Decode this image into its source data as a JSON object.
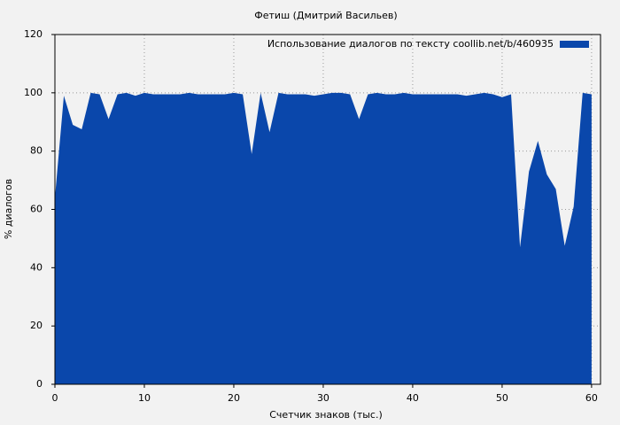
{
  "chart_data": {
    "type": "area",
    "title": "Фетиш (Дмитрий Васильев)",
    "x_label": "Счетчик знаков (тыс.)",
    "y_label": "% диалогов",
    "x": [
      0,
      1,
      2,
      3,
      4,
      5,
      6,
      7,
      8,
      9,
      10,
      11,
      12,
      13,
      14,
      15,
      16,
      17,
      18,
      19,
      20,
      21,
      22,
      23,
      24,
      25,
      26,
      27,
      28,
      29,
      30,
      31,
      32,
      33,
      34,
      35,
      36,
      37,
      38,
      39,
      40,
      41,
      42,
      43,
      44,
      45,
      46,
      47,
      48,
      49,
      50,
      51,
      52,
      53,
      54,
      55,
      56,
      57,
      58,
      59,
      60
    ],
    "series": [
      {
        "name": "Использование диалогов по тексту  coollib.net/b/460935",
        "color": "#0a47ab",
        "values": [
          64,
          99,
          89,
          87.5,
          100,
          99.5,
          91,
          99.5,
          100,
          99,
          100,
          99.5,
          99.5,
          99.5,
          99.5,
          100,
          99.5,
          99.5,
          99.5,
          99.5,
          100,
          99.5,
          79,
          100,
          86.5,
          100,
          99.5,
          99.5,
          99.5,
          99,
          99.5,
          100,
          100,
          99.5,
          91,
          99.5,
          100,
          99.5,
          99.5,
          100,
          99.5,
          99.5,
          99.5,
          99.5,
          99.5,
          99.5,
          99,
          99.5,
          100,
          99.5,
          98.5,
          99.5,
          47,
          73,
          83.5,
          72,
          67,
          47.5,
          61,
          100,
          99.5
        ]
      }
    ],
    "xlim": [
      0,
      61
    ],
    "ylim": [
      0,
      120
    ],
    "xticks": [
      0,
      10,
      20,
      30,
      40,
      50,
      60
    ],
    "yticks": [
      0,
      20,
      40,
      60,
      80,
      100,
      120
    ],
    "grid": true,
    "legend": "top-right"
  }
}
